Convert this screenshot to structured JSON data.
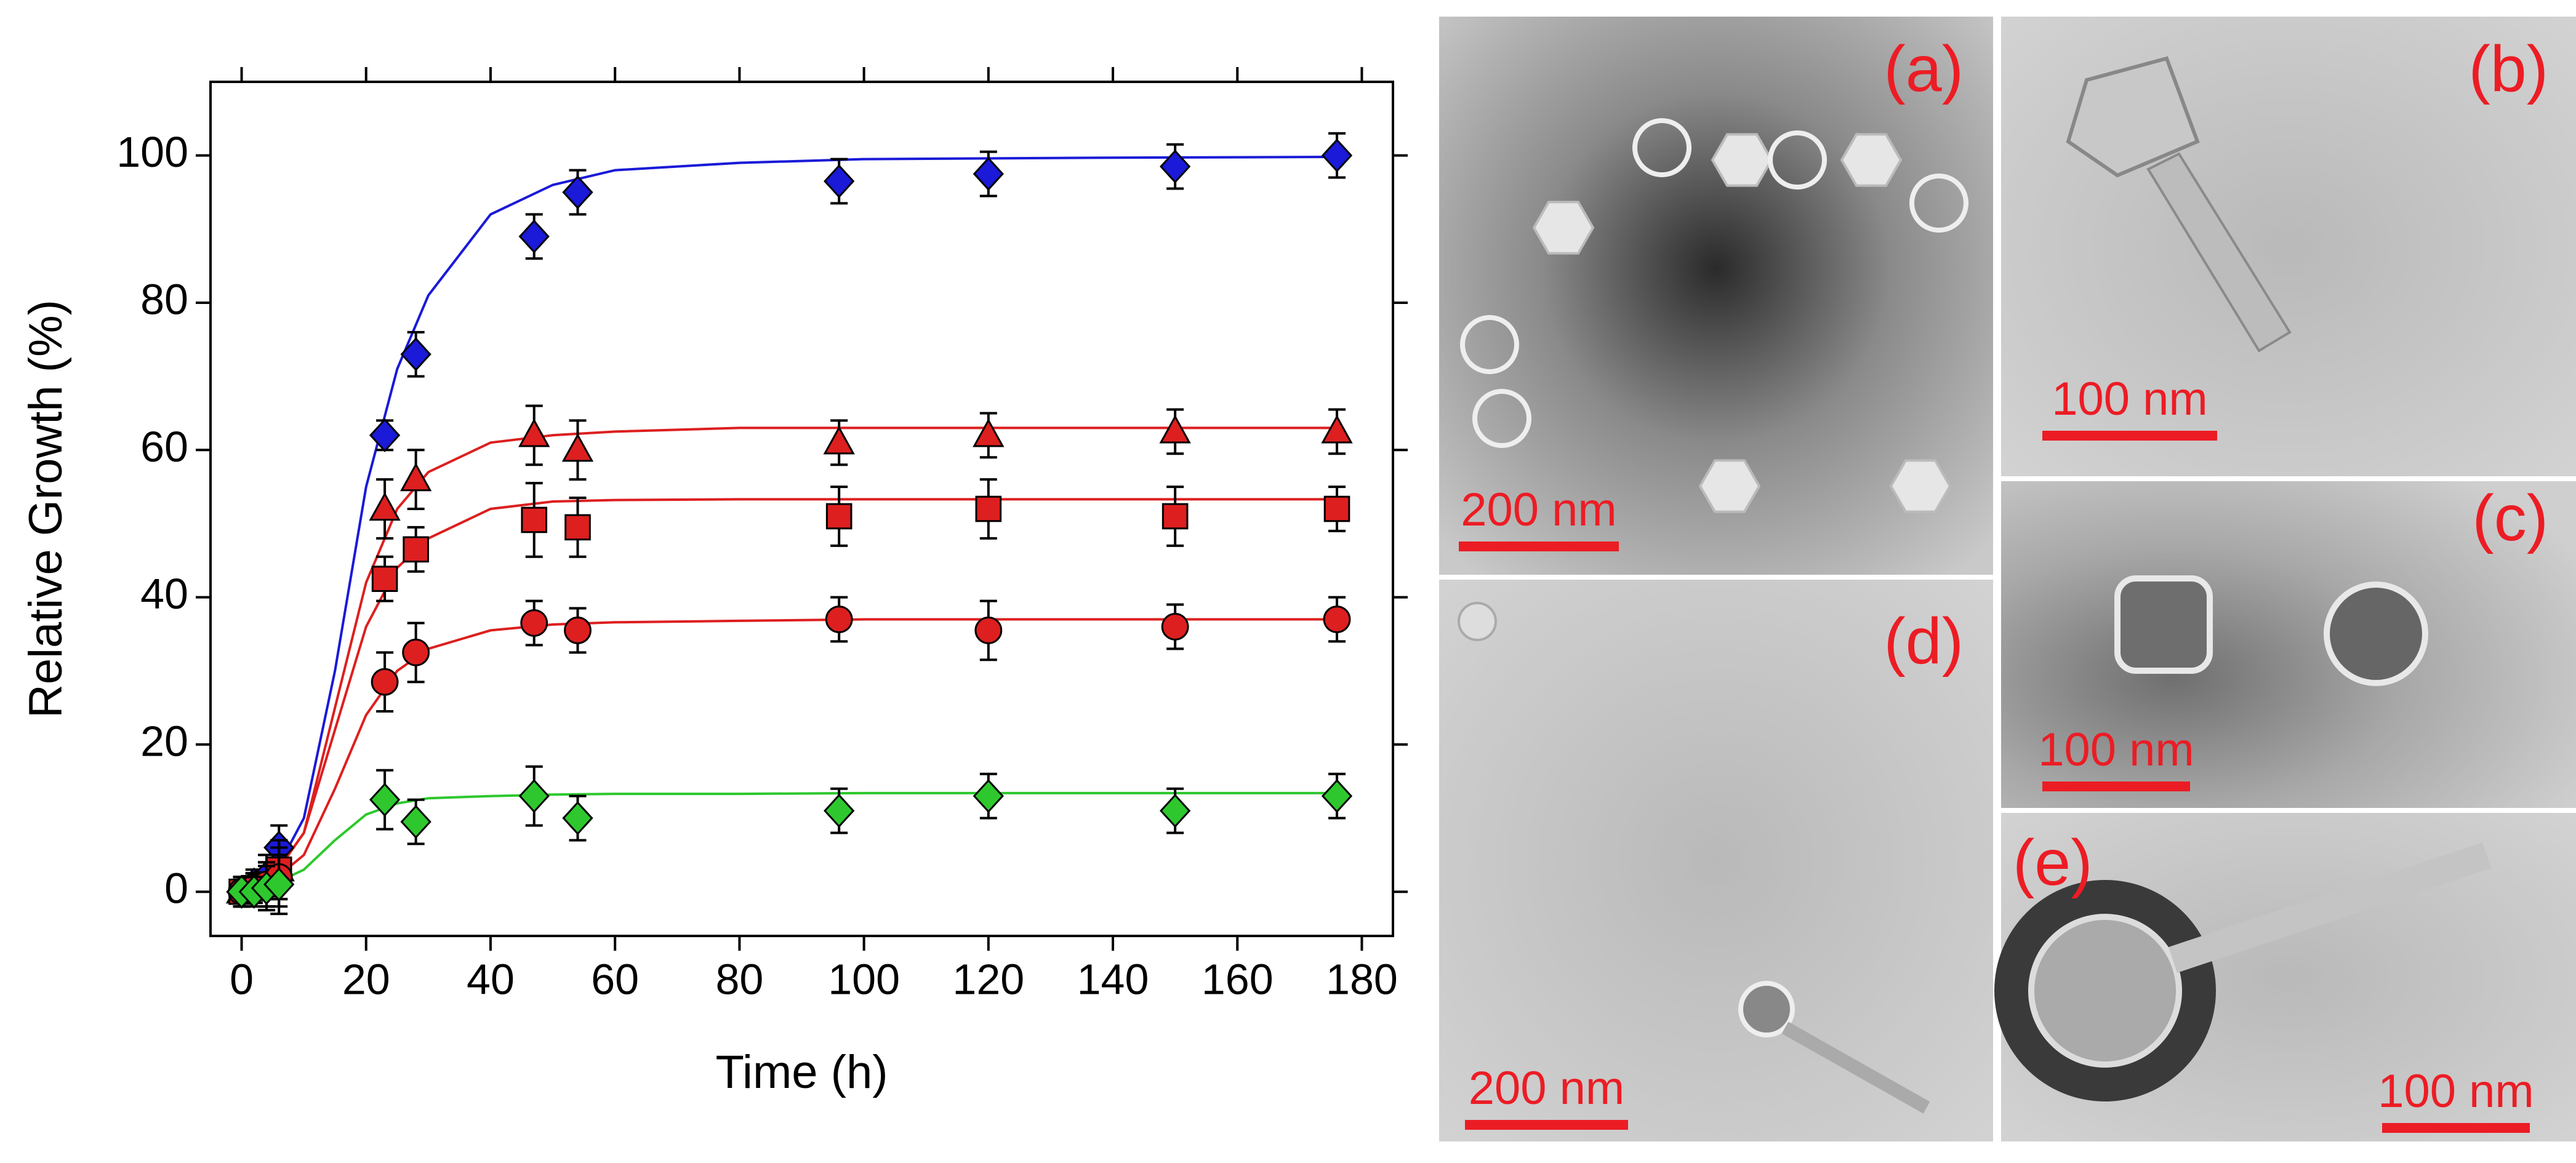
{
  "chart_data": {
    "type": "scatter",
    "xlabel": "Time (h)",
    "ylabel": "Relative Growth (%)",
    "xlim": [
      -5,
      185
    ],
    "ylim": [
      -6,
      110
    ],
    "xticks": [
      0,
      20,
      40,
      60,
      80,
      100,
      120,
      140,
      160,
      180
    ],
    "yticks": [
      0,
      20,
      40,
      60,
      80,
      100
    ],
    "series": [
      {
        "marker": "diamond",
        "color": "#1a1ad8",
        "x": [
          0,
          2,
          4,
          6,
          23,
          28,
          47,
          54,
          96,
          120,
          150,
          176
        ],
        "values": [
          0,
          1,
          2,
          6,
          62,
          73,
          89,
          95,
          96.5,
          97.5,
          98.5,
          100
        ],
        "errors": [
          2,
          2,
          3,
          3,
          2,
          3,
          3,
          3,
          3,
          3,
          3,
          3
        ]
      },
      {
        "marker": "triangle",
        "color": "#dd1f1f",
        "x": [
          0,
          2,
          4,
          6,
          23,
          28,
          47,
          54,
          96,
          120,
          150,
          176
        ],
        "values": [
          0,
          0.5,
          1,
          3,
          52,
          56,
          62,
          60,
          61,
          62,
          62.5,
          62.5
        ],
        "errors": [
          2,
          2,
          3,
          4,
          4,
          4,
          4,
          4,
          3,
          3,
          3,
          3
        ]
      },
      {
        "marker": "square",
        "color": "#dd1f1f",
        "x": [
          0,
          2,
          4,
          6,
          23,
          28,
          47,
          54,
          96,
          120,
          150,
          176
        ],
        "values": [
          0,
          0.5,
          1,
          3,
          42.5,
          46.5,
          50.5,
          49.5,
          51,
          52,
          51,
          52
        ],
        "errors": [
          2,
          2,
          3,
          4,
          3,
          3,
          5,
          4,
          4,
          4,
          4,
          3
        ]
      },
      {
        "marker": "circle",
        "color": "#dd1f1f",
        "x": [
          0,
          2,
          4,
          6,
          23,
          28,
          47,
          54,
          96,
          120,
          150,
          176
        ],
        "values": [
          0,
          0.5,
          1,
          2,
          28.5,
          32.5,
          36.5,
          35.5,
          37,
          35.5,
          36,
          37
        ],
        "errors": [
          2,
          2,
          3,
          4,
          4,
          4,
          3,
          3,
          3,
          4,
          3,
          3
        ]
      },
      {
        "marker": "diamond",
        "color": "#2ec82e",
        "x": [
          0,
          2,
          4,
          6,
          23,
          28,
          47,
          54,
          96,
          120,
          150,
          176
        ],
        "values": [
          0,
          0,
          0.5,
          1,
          12.5,
          9.5,
          13,
          10,
          11,
          13,
          11,
          13
        ],
        "errors": [
          2,
          2,
          3,
          4,
          4,
          3,
          4,
          3,
          3,
          3,
          3,
          3
        ]
      }
    ],
    "fits": [
      {
        "color": "#1a1ad8",
        "x": [
          0,
          5,
          10,
          15,
          20,
          25,
          30,
          40,
          50,
          60,
          80,
          100,
          140,
          176
        ],
        "values": [
          0,
          2,
          10,
          30,
          55,
          71,
          81,
          92,
          96,
          98,
          99,
          99.5,
          99.7,
          99.8
        ]
      },
      {
        "color": "#dd1f1f",
        "x": [
          0,
          5,
          10,
          15,
          20,
          25,
          30,
          40,
          50,
          60,
          80,
          100,
          140,
          176
        ],
        "values": [
          0,
          2,
          8,
          25,
          42,
          52,
          57,
          61,
          62,
          62.5,
          63,
          63,
          63,
          63
        ]
      },
      {
        "color": "#dd1f1f",
        "x": [
          0,
          5,
          10,
          15,
          20,
          25,
          30,
          40,
          50,
          60,
          80,
          100,
          140,
          176
        ],
        "values": [
          0,
          2,
          8,
          22,
          36,
          44,
          48,
          52,
          53,
          53.2,
          53.3,
          53.3,
          53.3,
          53.3
        ]
      },
      {
        "color": "#dd1f1f",
        "x": [
          0,
          5,
          10,
          15,
          20,
          25,
          30,
          40,
          50,
          60,
          80,
          100,
          140,
          176
        ],
        "values": [
          0,
          1.5,
          5,
          14,
          24,
          30,
          33,
          35.5,
          36.3,
          36.6,
          36.8,
          37,
          37,
          37
        ]
      },
      {
        "color": "#2ec82e",
        "x": [
          0,
          5,
          10,
          15,
          20,
          25,
          30,
          40,
          50,
          60,
          80,
          100,
          140,
          176
        ],
        "values": [
          0,
          1,
          3,
          7,
          10.5,
          12,
          12.7,
          13,
          13.2,
          13.3,
          13.3,
          13.4,
          13.4,
          13.4
        ]
      }
    ]
  },
  "panels": [
    {
      "label": "(a)",
      "scale_bar": "200 nm"
    },
    {
      "label": "(b)",
      "scale_bar": "100 nm"
    },
    {
      "label": "(c)",
      "scale_bar": "100 nm"
    },
    {
      "label": "(d)",
      "scale_bar": "200 nm"
    },
    {
      "label": "(e)",
      "scale_bar": "100 nm"
    }
  ]
}
